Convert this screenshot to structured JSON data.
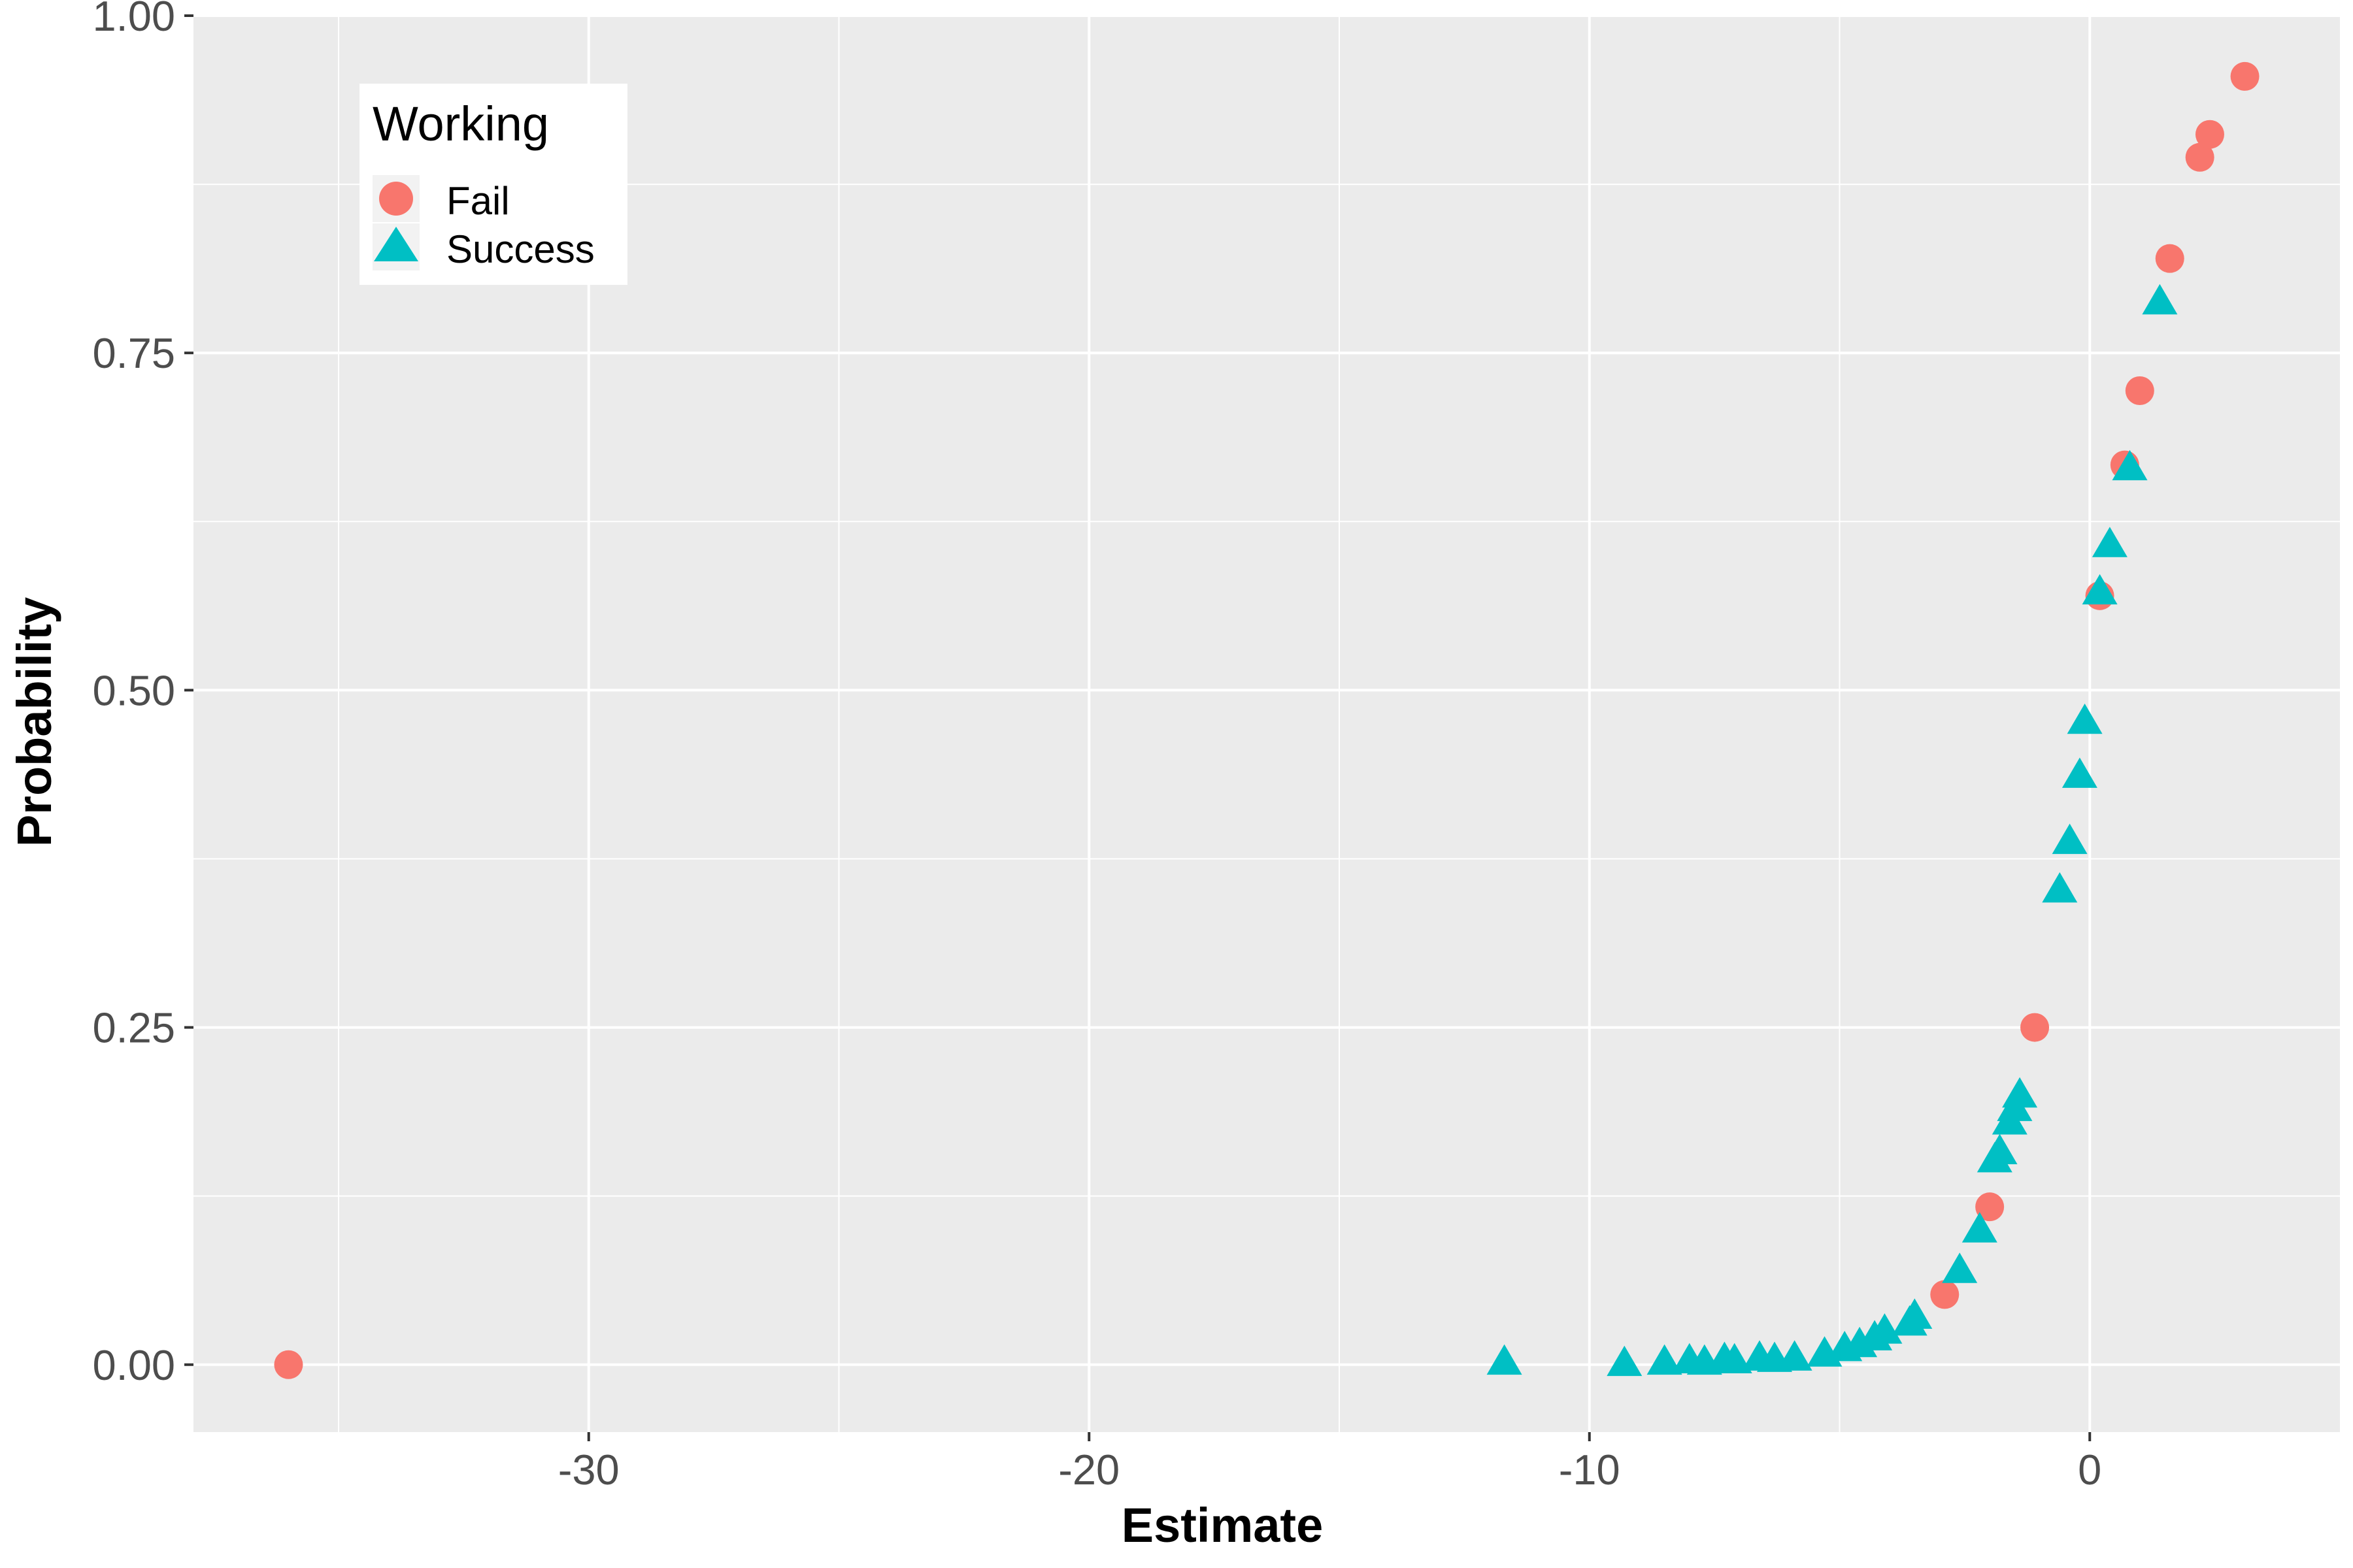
{
  "chart_data": {
    "type": "scatter",
    "title": "",
    "xlabel": "Estimate",
    "ylabel": "Probability",
    "xlim": [
      -37.9,
      5.0
    ],
    "ylim": [
      -0.05,
      1.0
    ],
    "x_ticks": [
      -30,
      -20,
      -10,
      0
    ],
    "x_tick_labels": [
      "-30",
      "-20",
      "-10",
      "0"
    ],
    "y_ticks": [
      0,
      0.25,
      0.5,
      0.75,
      1.0
    ],
    "y_tick_labels": [
      "0.00",
      "0.25",
      "0.50",
      "0.75",
      "1.00"
    ],
    "grid": true,
    "legend": {
      "title": "Working",
      "position": "top-left"
    },
    "series": [
      {
        "name": "Fail",
        "marker": "circle",
        "color": "#F8766D",
        "points": [
          {
            "x": -36.0,
            "y": 0.0
          },
          {
            "x": -2.9,
            "y": 0.052
          },
          {
            "x": -2.0,
            "y": 0.117
          },
          {
            "x": -1.1,
            "y": 0.25
          },
          {
            "x": 0.2,
            "y": 0.57
          },
          {
            "x": 0.7,
            "y": 0.667
          },
          {
            "x": 1.0,
            "y": 0.722
          },
          {
            "x": 1.6,
            "y": 0.82
          },
          {
            "x": 2.2,
            "y": 0.895
          },
          {
            "x": 2.4,
            "y": 0.912
          },
          {
            "x": 3.1,
            "y": 0.955
          }
        ]
      },
      {
        "name": "Success",
        "marker": "triangle",
        "color": "#00BFC4",
        "points": [
          {
            "x": -11.7,
            "y": 0.002
          },
          {
            "x": -9.3,
            "y": 0.001
          },
          {
            "x": -8.5,
            "y": 0.002
          },
          {
            "x": -8.0,
            "y": 0.003
          },
          {
            "x": -7.7,
            "y": 0.002
          },
          {
            "x": -7.3,
            "y": 0.004
          },
          {
            "x": -7.1,
            "y": 0.003
          },
          {
            "x": -6.6,
            "y": 0.005
          },
          {
            "x": -6.3,
            "y": 0.004
          },
          {
            "x": -5.9,
            "y": 0.005
          },
          {
            "x": -5.3,
            "y": 0.008
          },
          {
            "x": -4.9,
            "y": 0.012
          },
          {
            "x": -4.6,
            "y": 0.015
          },
          {
            "x": -4.3,
            "y": 0.02
          },
          {
            "x": -4.1,
            "y": 0.025
          },
          {
            "x": -3.6,
            "y": 0.031
          },
          {
            "x": -3.5,
            "y": 0.036
          },
          {
            "x": -2.6,
            "y": 0.07
          },
          {
            "x": -2.2,
            "y": 0.1
          },
          {
            "x": -1.9,
            "y": 0.152
          },
          {
            "x": -1.8,
            "y": 0.158
          },
          {
            "x": -1.6,
            "y": 0.18
          },
          {
            "x": -1.5,
            "y": 0.19
          },
          {
            "x": -1.4,
            "y": 0.2
          },
          {
            "x": -0.6,
            "y": 0.352
          },
          {
            "x": -0.4,
            "y": 0.388
          },
          {
            "x": -0.2,
            "y": 0.437
          },
          {
            "x": -0.1,
            "y": 0.477
          },
          {
            "x": 0.2,
            "y": 0.573
          },
          {
            "x": 0.4,
            "y": 0.608
          },
          {
            "x": 0.8,
            "y": 0.665
          },
          {
            "x": 1.4,
            "y": 0.788
          }
        ]
      }
    ]
  }
}
